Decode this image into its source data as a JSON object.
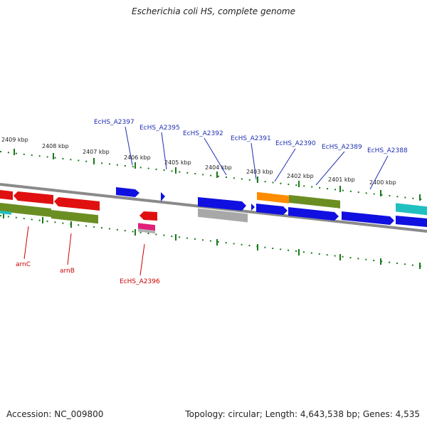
{
  "title": "Escherichia coli HS, complete genome",
  "footer": {
    "accession": "Accession: NC_009800",
    "summary": "Topology: circular; Length: 4,643,538 bp; Genes: 4,535"
  },
  "kbp_labels": [
    "2409 kbp",
    "2408 kbp",
    "2407 kbp",
    "2406 kbp",
    "2405 kbp",
    "2404 kbp",
    "2403 kbp",
    "2402 kbp",
    "2401 kbp",
    "2400 kbp"
  ],
  "gene_labels_top": [
    "EcHS_A2397",
    "EcHS_A2395",
    "EcHS_A2392",
    "EcHS_A2391",
    "EcHS_A2390",
    "EcHS_A2389",
    "EcHS_A2388"
  ],
  "gene_labels_bottom": [
    "arnC",
    "arnB",
    "EcHS_A2396"
  ],
  "colors": {
    "forward_gene": "#1010e0",
    "reverse_gene": "#e01010",
    "olive_band": "#6b8e23",
    "cyan_band": "#20c0c0",
    "gray_band": "#a8a8a8",
    "orange_band": "#ff8c00",
    "pink_band": "#e0207a",
    "tick": "#1a7a1a",
    "top_label": "#1f2fb0",
    "bottom_label": "#cc0000"
  }
}
